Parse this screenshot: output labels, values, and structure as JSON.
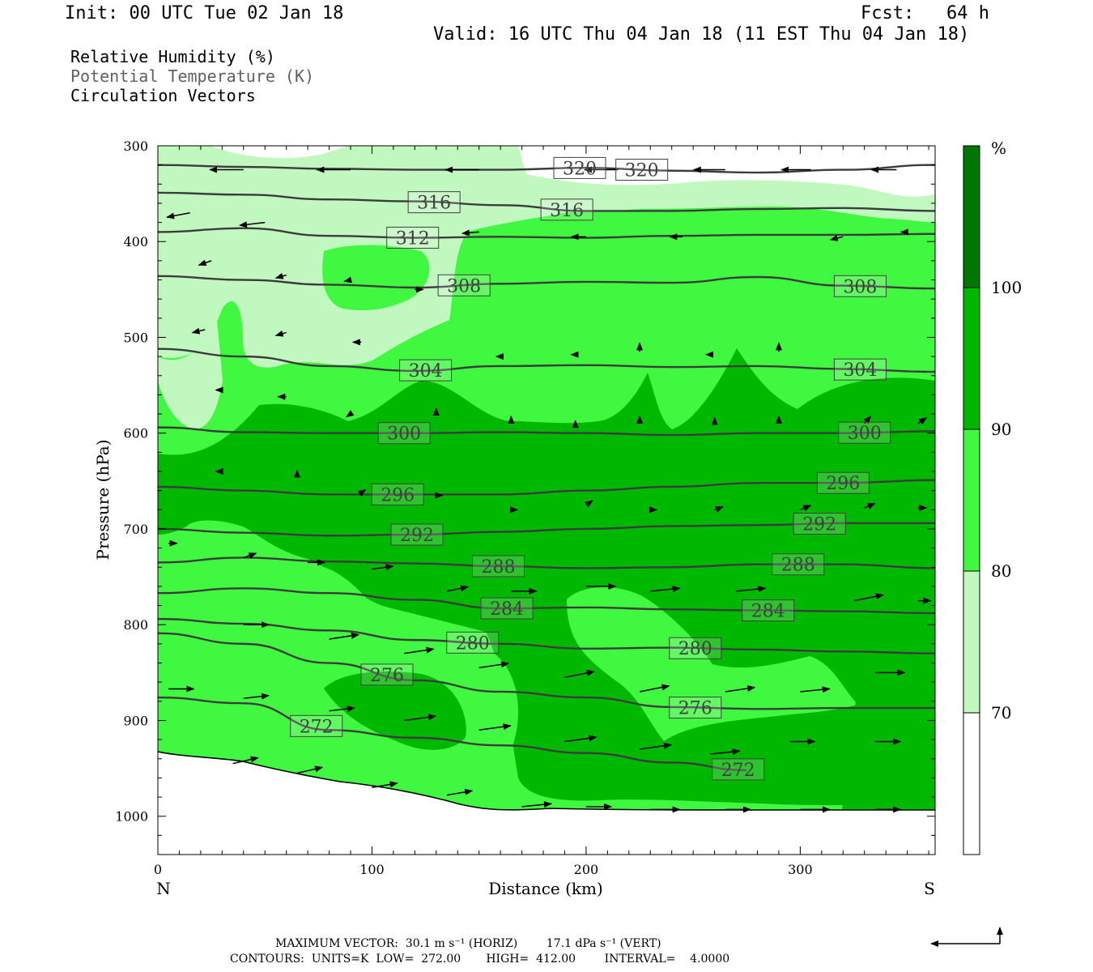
{
  "header": {
    "init": "Init: 00 UTC Tue 02 Jan 18",
    "fcst": "Fcst:   64 h",
    "valid": "Valid: 16 UTC Thu 04 Jan 18 (11 EST Thu 04 Jan 18)"
  },
  "fields": {
    "rh": "Relative Humidity (%)",
    "theta": "Potential Temperature (K)",
    "vectors": "Circulation Vectors"
  },
  "footer": {
    "max_vector": "MAXIMUM VECTOR:  30.1 m s⁻¹ (HORIZ)        17.1 dPa s⁻¹ (VERT)",
    "contours": "CONTOURS:  UNITS=K  LOW=  272.00       HIGH=  412.00        INTERVAL=    4.0000"
  },
  "colors": {
    "rh70": "#c0f8c0",
    "rh80": "#40f840",
    "rh90": "#00b800",
    "rh100": "#007800",
    "isentrope": "#3c3c3c",
    "vector": "#000000"
  },
  "chart_data": {
    "type": "cross-section",
    "xlabel": "Distance (km)",
    "ylabel": "Pressure (hPa)",
    "xlim": [
      0,
      363
    ],
    "ylim": [
      1040,
      300
    ],
    "x_ticks": [
      "0",
      "100",
      "200",
      "300"
    ],
    "x_end_labels": {
      "left": "N",
      "right": "S"
    },
    "y_ticks": [
      "300",
      "400",
      "500",
      "600",
      "700",
      "800",
      "900",
      "1000"
    ],
    "colorbar": {
      "unit": "%",
      "levels": [
        "70",
        "80",
        "90",
        "100"
      ],
      "colors": [
        "#ffffff",
        "#c0f8c0",
        "#40f840",
        "#00b800",
        "#007800"
      ]
    },
    "isentropes": [
      {
        "theta": 320,
        "label_x": [
          197,
          226
        ],
        "points": [
          [
            0,
            320
          ],
          [
            40,
            322
          ],
          [
            80,
            324
          ],
          [
            120,
            325
          ],
          [
            160,
            325
          ],
          [
            200,
            323
          ],
          [
            240,
            326
          ],
          [
            280,
            328
          ],
          [
            320,
            325
          ],
          [
            363,
            320
          ]
        ]
      },
      {
        "theta": 316,
        "label_x": [
          129,
          191
        ],
        "points": [
          [
            0,
            349
          ],
          [
            40,
            351
          ],
          [
            80,
            356
          ],
          [
            120,
            358
          ],
          [
            160,
            362
          ],
          [
            200,
            368
          ],
          [
            240,
            368
          ],
          [
            280,
            366
          ],
          [
            320,
            365
          ],
          [
            363,
            368
          ]
        ]
      },
      {
        "theta": 312,
        "label_x": [
          119
        ],
        "points": [
          [
            0,
            390
          ],
          [
            40,
            386
          ],
          [
            80,
            394
          ],
          [
            120,
            396
          ],
          [
            160,
            395
          ],
          [
            200,
            396
          ],
          [
            240,
            394
          ],
          [
            280,
            393
          ],
          [
            320,
            393
          ],
          [
            363,
            392
          ]
        ]
      },
      {
        "theta": 308,
        "label_x": [
          143,
          328
        ],
        "points": [
          [
            0,
            436
          ],
          [
            40,
            440
          ],
          [
            80,
            445
          ],
          [
            120,
            448
          ],
          [
            160,
            444
          ],
          [
            200,
            442
          ],
          [
            240,
            443
          ],
          [
            280,
            437
          ],
          [
            320,
            446
          ],
          [
            363,
            449
          ]
        ]
      },
      {
        "theta": 304,
        "label_x": [
          125,
          328
        ],
        "points": [
          [
            0,
            512
          ],
          [
            40,
            520
          ],
          [
            80,
            530
          ],
          [
            120,
            535
          ],
          [
            160,
            530
          ],
          [
            200,
            529
          ],
          [
            240,
            531
          ],
          [
            280,
            530
          ],
          [
            320,
            533
          ],
          [
            363,
            536
          ]
        ]
      },
      {
        "theta": 300,
        "label_x": [
          115,
          330
        ],
        "points": [
          [
            0,
            594
          ],
          [
            40,
            599
          ],
          [
            80,
            600
          ],
          [
            120,
            600
          ],
          [
            160,
            599
          ],
          [
            200,
            600
          ],
          [
            240,
            602
          ],
          [
            280,
            600
          ],
          [
            320,
            600
          ],
          [
            363,
            598
          ]
        ]
      },
      {
        "theta": 296,
        "label_x": [
          112,
          320
        ],
        "points": [
          [
            0,
            656
          ],
          [
            40,
            660
          ],
          [
            80,
            664
          ],
          [
            120,
            664
          ],
          [
            160,
            664
          ],
          [
            200,
            660
          ],
          [
            240,
            656
          ],
          [
            280,
            652
          ],
          [
            320,
            652
          ],
          [
            363,
            649
          ]
        ]
      },
      {
        "theta": 292,
        "label_x": [
          121,
          309
        ],
        "points": [
          [
            0,
            700
          ],
          [
            40,
            704
          ],
          [
            80,
            707
          ],
          [
            120,
            706
          ],
          [
            160,
            703
          ],
          [
            200,
            700
          ],
          [
            240,
            697
          ],
          [
            280,
            696
          ],
          [
            320,
            694
          ],
          [
            363,
            694
          ]
        ]
      },
      {
        "theta": 288,
        "label_x": [
          159,
          299
        ],
        "points": [
          [
            0,
            735
          ],
          [
            40,
            730
          ],
          [
            80,
            734
          ],
          [
            120,
            736
          ],
          [
            160,
            739
          ],
          [
            200,
            741
          ],
          [
            240,
            740
          ],
          [
            280,
            737
          ],
          [
            320,
            737
          ],
          [
            363,
            741
          ]
        ]
      },
      {
        "theta": 284,
        "label_x": [
          163,
          285
        ],
        "points": [
          [
            0,
            767
          ],
          [
            40,
            762
          ],
          [
            80,
            767
          ],
          [
            120,
            774
          ],
          [
            160,
            783
          ],
          [
            200,
            782
          ],
          [
            240,
            784
          ],
          [
            280,
            785
          ],
          [
            320,
            786
          ],
          [
            363,
            788
          ]
        ]
      },
      {
        "theta": 280,
        "label_x": [
          147,
          251
        ],
        "points": [
          [
            0,
            794
          ],
          [
            40,
            799
          ],
          [
            80,
            806
          ],
          [
            120,
            816
          ],
          [
            160,
            820
          ],
          [
            200,
            825
          ],
          [
            240,
            824
          ],
          [
            280,
            826
          ],
          [
            320,
            828
          ],
          [
            363,
            830
          ]
        ]
      },
      {
        "theta": 276,
        "label_x": [
          107,
          251
        ],
        "points": [
          [
            0,
            809
          ],
          [
            40,
            820
          ],
          [
            80,
            840
          ],
          [
            120,
            858
          ],
          [
            160,
            870
          ],
          [
            200,
            876
          ],
          [
            240,
            886
          ],
          [
            280,
            888
          ],
          [
            320,
            887
          ],
          [
            363,
            887
          ]
        ]
      },
      {
        "theta": 272,
        "label_x": [
          74,
          271
        ],
        "points": [
          [
            0,
            876
          ],
          [
            40,
            882
          ],
          [
            80,
            910
          ],
          [
            120,
            918
          ],
          [
            160,
            926
          ],
          [
            200,
            934
          ],
          [
            240,
            944
          ],
          [
            275,
            952
          ]
        ]
      }
    ],
    "vectors": [
      [
        40,
        325,
        -16,
        0
      ],
      [
        90,
        325,
        -16,
        0
      ],
      [
        150,
        325,
        -16,
        0
      ],
      [
        215,
        325,
        -16,
        0
      ],
      [
        265,
        325,
        -15,
        0
      ],
      [
        305,
        325,
        -14,
        0
      ],
      [
        345,
        325,
        -12,
        0
      ],
      [
        15,
        370,
        -11,
        -3
      ],
      [
        50,
        380,
        -12,
        -2
      ],
      [
        150,
        390,
        -8,
        -1
      ],
      [
        200,
        395,
        -7,
        0
      ],
      [
        245,
        395,
        -6,
        0
      ],
      [
        320,
        395,
        -6,
        -2
      ],
      [
        350,
        390,
        -3,
        0
      ],
      [
        25,
        420,
        -6,
        -3
      ],
      [
        60,
        435,
        -5,
        -2
      ],
      [
        90,
        440,
        -3,
        -1
      ],
      [
        120,
        450,
        4,
        0
      ],
      [
        22,
        492,
        -6,
        -2
      ],
      [
        60,
        495,
        -5,
        -2
      ],
      [
        95,
        505,
        -4,
        0
      ],
      [
        160,
        520,
        -2,
        0
      ],
      [
        195,
        518,
        -2,
        0
      ],
      [
        225,
        515,
        0,
        6
      ],
      [
        258,
        518,
        -2,
        0
      ],
      [
        290,
        515,
        0,
        6
      ],
      [
        30,
        555,
        -3,
        0
      ],
      [
        60,
        562,
        -4,
        0
      ],
      [
        90,
        580,
        -2,
        -2
      ],
      [
        130,
        580,
        0,
        4
      ],
      [
        165,
        590,
        0,
        5
      ],
      [
        195,
        590,
        0,
        2
      ],
      [
        225,
        590,
        0,
        5
      ],
      [
        260,
        590,
        0,
        4
      ],
      [
        290,
        590,
        0,
        5
      ],
      [
        330,
        590,
        3,
        5
      ],
      [
        355,
        590,
        4,
        4
      ],
      [
        30,
        640,
        -3,
        0
      ],
      [
        65,
        645,
        0,
        4
      ],
      [
        95,
        662,
        2,
        2
      ],
      [
        130,
        665,
        3,
        0
      ],
      [
        165,
        680,
        3,
        0
      ],
      [
        200,
        675,
        3,
        3
      ],
      [
        230,
        680,
        3,
        0
      ],
      [
        260,
        680,
        4,
        2
      ],
      [
        300,
        680,
        5,
        3
      ],
      [
        330,
        678,
        5,
        3
      ],
      [
        355,
        678,
        4,
        0
      ],
      [
        5,
        715,
        4,
        0
      ],
      [
        40,
        730,
        6,
        3
      ],
      [
        70,
        735,
        8,
        0
      ],
      [
        100,
        742,
        10,
        2
      ],
      [
        135,
        765,
        10,
        3
      ],
      [
        165,
        765,
        12,
        0
      ],
      [
        200,
        760,
        14,
        0
      ],
      [
        230,
        765,
        14,
        2
      ],
      [
        270,
        765,
        14,
        2
      ],
      [
        325,
        775,
        14,
        4
      ],
      [
        355,
        775,
        6,
        0
      ],
      [
        40,
        800,
        12,
        0
      ],
      [
        80,
        815,
        14,
        3
      ],
      [
        115,
        830,
        14,
        3
      ],
      [
        150,
        845,
        14,
        3
      ],
      [
        190,
        855,
        14,
        4
      ],
      [
        225,
        870,
        14,
        4
      ],
      [
        265,
        870,
        14,
        3
      ],
      [
        300,
        870,
        14,
        2
      ],
      [
        335,
        850,
        14,
        0
      ],
      [
        5,
        867,
        12,
        0
      ],
      [
        40,
        877,
        12,
        2
      ],
      [
        80,
        890,
        12,
        2
      ],
      [
        115,
        900,
        15,
        3
      ],
      [
        150,
        910,
        15,
        3
      ],
      [
        190,
        922,
        15,
        3
      ],
      [
        225,
        930,
        15,
        3
      ],
      [
        258,
        935,
        14,
        2
      ],
      [
        295,
        922,
        12,
        0
      ],
      [
        335,
        922,
        12,
        0
      ],
      [
        35,
        945,
        12,
        4
      ],
      [
        65,
        955,
        12,
        4
      ],
      [
        100,
        970,
        12,
        3
      ],
      [
        135,
        978,
        12,
        3
      ],
      [
        170,
        990,
        14,
        2
      ],
      [
        200,
        990,
        12,
        0
      ],
      [
        230,
        993,
        14,
        0
      ],
      [
        265,
        993,
        12,
        0
      ],
      [
        300,
        993,
        14,
        0
      ],
      [
        335,
        993,
        12,
        0
      ]
    ]
  }
}
